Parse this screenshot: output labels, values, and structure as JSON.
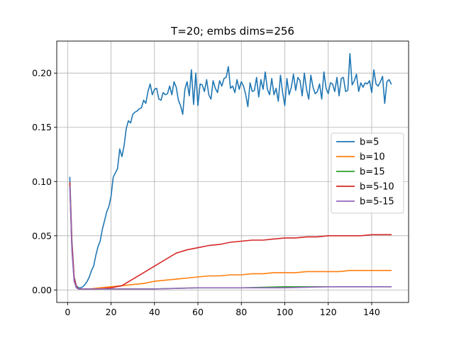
{
  "chart_data": {
    "type": "line",
    "title": "T=20; embs dims=256",
    "xlabel": "",
    "ylabel": "",
    "xlim": [
      -5,
      157
    ],
    "ylim": [
      -0.0115,
      0.2295
    ],
    "xticks": [
      0,
      20,
      40,
      60,
      80,
      100,
      120,
      140
    ],
    "xtick_labels": [
      "0",
      "20",
      "40",
      "60",
      "80",
      "100",
      "120",
      "140"
    ],
    "yticks": [
      0.0,
      0.05,
      0.1,
      0.15,
      0.2
    ],
    "ytick_labels": [
      "0.00",
      "0.05",
      "0.10",
      "0.15",
      "0.20"
    ],
    "grid": true,
    "legend_position": "center-right",
    "series": [
      {
        "name": "b=5",
        "color": "#1f77b4",
        "x": [
          1,
          2,
          3,
          4,
          5,
          6,
          7,
          8,
          9,
          10,
          11,
          12,
          13,
          14,
          15,
          16,
          17,
          18,
          19,
          20,
          21,
          22,
          23,
          24,
          25,
          26,
          27,
          28,
          29,
          30,
          31,
          32,
          33,
          34,
          35,
          36,
          37,
          38,
          39,
          40,
          41,
          42,
          43,
          44,
          45,
          46,
          47,
          48,
          49,
          50,
          51,
          52,
          53,
          54,
          55,
          56,
          57,
          58,
          59,
          60,
          61,
          62,
          63,
          64,
          65,
          66,
          67,
          68,
          69,
          70,
          71,
          72,
          73,
          74,
          75,
          76,
          77,
          78,
          79,
          80,
          81,
          82,
          83,
          84,
          85,
          86,
          87,
          88,
          89,
          90,
          91,
          92,
          93,
          94,
          95,
          96,
          97,
          98,
          99,
          100,
          101,
          102,
          103,
          104,
          105,
          106,
          107,
          108,
          109,
          110,
          111,
          112,
          113,
          114,
          115,
          116,
          117,
          118,
          119,
          120,
          121,
          122,
          123,
          124,
          125,
          126,
          127,
          128,
          129,
          130,
          131,
          132,
          133,
          134,
          135,
          136,
          137,
          138,
          139,
          140,
          141,
          142,
          143,
          144,
          145,
          146,
          147,
          148,
          149
        ],
        "y": [
          0.104,
          0.045,
          0.012,
          0.004,
          0.002,
          0.002,
          0.003,
          0.005,
          0.008,
          0.012,
          0.018,
          0.022,
          0.032,
          0.04,
          0.045,
          0.056,
          0.064,
          0.072,
          0.077,
          0.086,
          0.104,
          0.108,
          0.112,
          0.13,
          0.123,
          0.133,
          0.149,
          0.156,
          0.154,
          0.162,
          0.164,
          0.165,
          0.167,
          0.168,
          0.175,
          0.172,
          0.183,
          0.19,
          0.18,
          0.185,
          0.186,
          0.176,
          0.175,
          0.182,
          0.18,
          0.181,
          0.188,
          0.18,
          0.192,
          0.187,
          0.175,
          0.17,
          0.162,
          0.185,
          0.192,
          0.179,
          0.203,
          0.171,
          0.2,
          0.17,
          0.19,
          0.189,
          0.183,
          0.194,
          0.18,
          0.176,
          0.193,
          0.186,
          0.182,
          0.193,
          0.188,
          0.195,
          0.196,
          0.206,
          0.186,
          0.188,
          0.182,
          0.194,
          0.185,
          0.192,
          0.188,
          0.18,
          0.169,
          0.191,
          0.183,
          0.184,
          0.196,
          0.178,
          0.194,
          0.185,
          0.201,
          0.185,
          0.18,
          0.195,
          0.18,
          0.186,
          0.174,
          0.198,
          0.182,
          0.17,
          0.195,
          0.18,
          0.187,
          0.199,
          0.184,
          0.196,
          0.193,
          0.179,
          0.2,
          0.185,
          0.176,
          0.198,
          0.187,
          0.181,
          0.183,
          0.19,
          0.176,
          0.201,
          0.186,
          0.181,
          0.191,
          0.19,
          0.183,
          0.196,
          0.179,
          0.195,
          0.196,
          0.183,
          0.184,
          0.218,
          0.189,
          0.193,
          0.199,
          0.183,
          0.191,
          0.187,
          0.191,
          0.19,
          0.193,
          0.182,
          0.203,
          0.19,
          0.188,
          0.192,
          0.197,
          0.172,
          0.192,
          0.194,
          0.19
        ]
      },
      {
        "name": "b=10",
        "color": "#ff7f0e",
        "x": [
          1,
          2,
          3,
          4,
          5,
          10,
          15,
          20,
          25,
          30,
          35,
          40,
          45,
          50,
          55,
          60,
          65,
          70,
          75,
          80,
          85,
          90,
          95,
          100,
          105,
          110,
          115,
          120,
          125,
          130,
          135,
          140,
          145,
          149
        ],
        "y": [
          0.098,
          0.04,
          0.01,
          0.003,
          0.001,
          0.001,
          0.002,
          0.003,
          0.004,
          0.005,
          0.006,
          0.008,
          0.009,
          0.01,
          0.011,
          0.012,
          0.013,
          0.013,
          0.014,
          0.014,
          0.015,
          0.015,
          0.016,
          0.016,
          0.016,
          0.017,
          0.017,
          0.017,
          0.017,
          0.018,
          0.018,
          0.018,
          0.018,
          0.018
        ]
      },
      {
        "name": "b=15",
        "color": "#2ca02c",
        "x": [
          1,
          2,
          3,
          4,
          5,
          10,
          20,
          40,
          60,
          80,
          100,
          120,
          140,
          149
        ],
        "y": [
          0.097,
          0.038,
          0.009,
          0.002,
          0.001,
          0.001,
          0.001,
          0.001,
          0.002,
          0.002,
          0.003,
          0.003,
          0.003,
          0.003
        ]
      },
      {
        "name": "b=5-10",
        "color": "#d62728",
        "x": [
          1,
          2,
          3,
          4,
          5,
          10,
          15,
          20,
          25,
          30,
          35,
          40,
          45,
          50,
          55,
          60,
          65,
          70,
          75,
          80,
          85,
          90,
          95,
          100,
          105,
          110,
          115,
          120,
          125,
          130,
          135,
          140,
          145,
          149
        ],
        "y": [
          0.099,
          0.042,
          0.011,
          0.003,
          0.001,
          0.001,
          0.001,
          0.002,
          0.004,
          0.01,
          0.016,
          0.022,
          0.028,
          0.034,
          0.037,
          0.039,
          0.041,
          0.042,
          0.044,
          0.045,
          0.046,
          0.046,
          0.047,
          0.048,
          0.048,
          0.049,
          0.049,
          0.05,
          0.05,
          0.05,
          0.05,
          0.051,
          0.051,
          0.051
        ]
      },
      {
        "name": "b=5-15",
        "color": "#9467bd",
        "x": [
          1,
          2,
          3,
          4,
          5,
          10,
          20,
          40,
          60,
          80,
          100,
          120,
          140,
          149
        ],
        "y": [
          0.096,
          0.036,
          0.008,
          0.002,
          0.001,
          0.001,
          0.001,
          0.001,
          0.002,
          0.002,
          0.002,
          0.003,
          0.003,
          0.003
        ]
      }
    ]
  }
}
